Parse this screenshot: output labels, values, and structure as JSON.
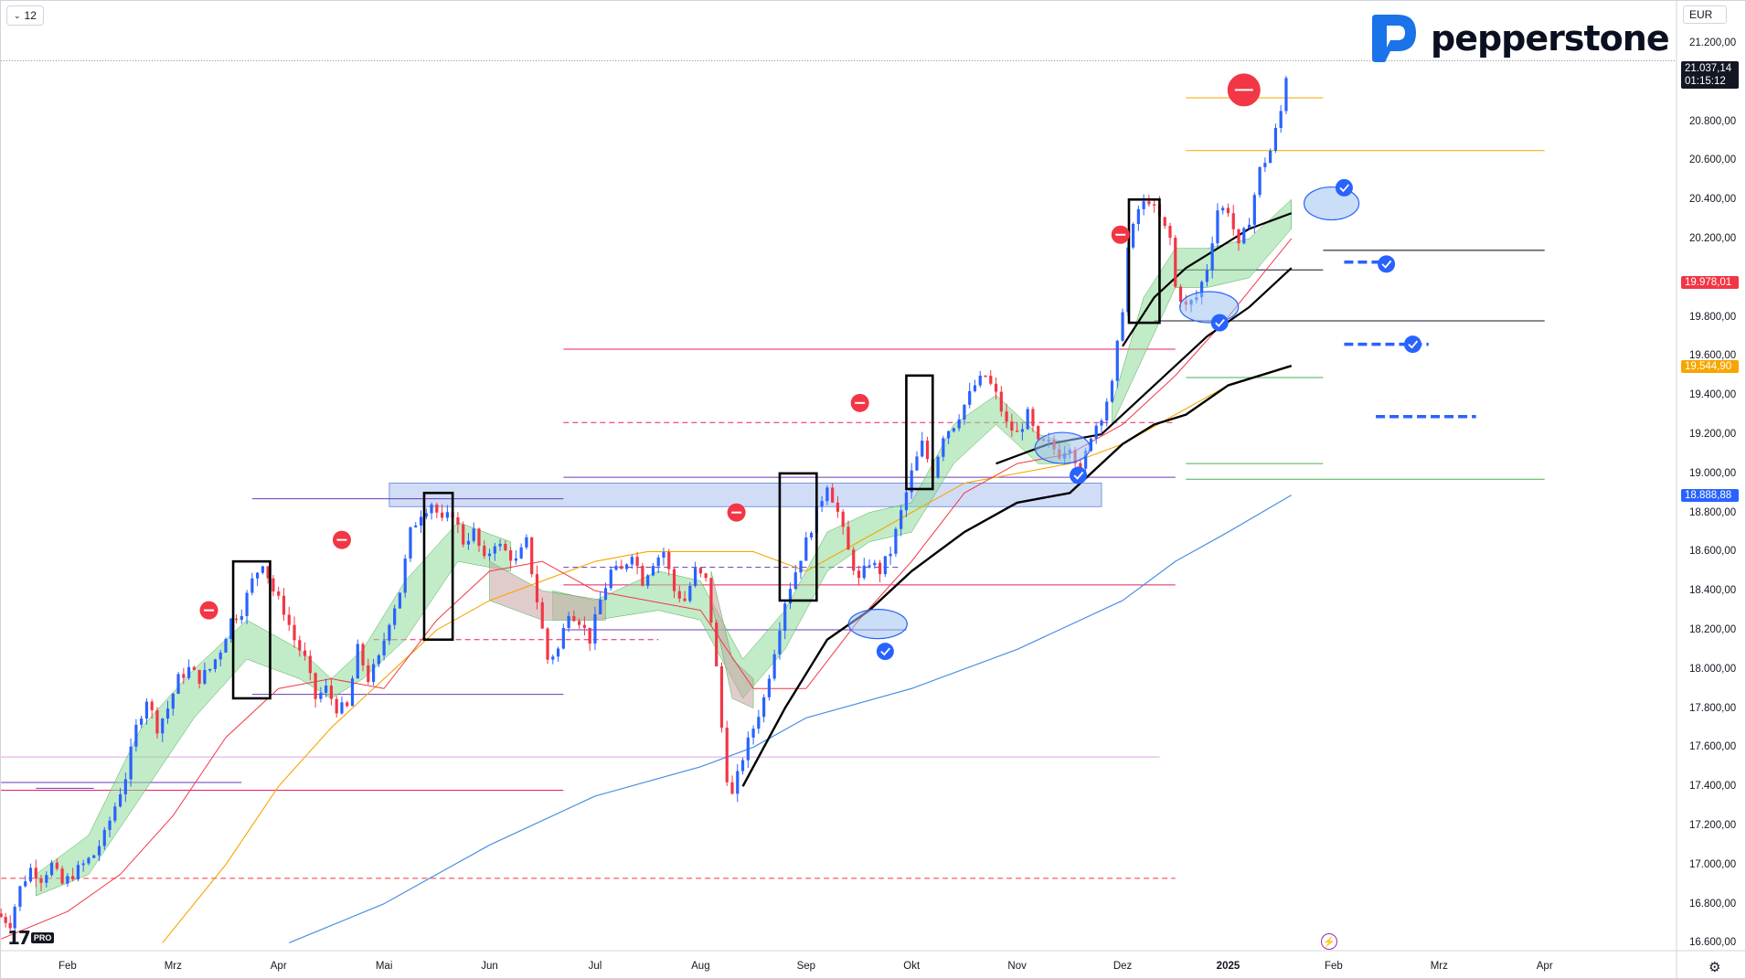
{
  "toolbar": {
    "interval_label": "12",
    "interval_icon": "chevron-down-icon"
  },
  "brand": {
    "name": "pepperstone",
    "logo_icon": "pepperstone-p-logo"
  },
  "currency": "EUR",
  "watermark": {
    "label": "PRO",
    "logo_icon": "tradingview-logo"
  },
  "icons": {
    "settings": "gear-icon",
    "alert": "lightning-bolt-icon"
  },
  "colors": {
    "up": "#2962ff",
    "down": "#f23645",
    "ma_fast": "#f23645",
    "ma_mid": "#000000",
    "ma_slow_orange": "#f7a600",
    "ma_long_blue": "#4a90e2",
    "band_up": "#8fdb9a",
    "band_down": "#c9a3a3",
    "resistance": "#e91e63",
    "support": "#673ab7",
    "zone": "#7b9ee8",
    "check": "#2962ff",
    "sell_marker": "#f23645"
  },
  "price_tags": {
    "current": {
      "price": "21.037,14",
      "countdown": "01:15:12",
      "value": 21037.14,
      "color": "#131722"
    },
    "levels": [
      {
        "label": "19.978,01",
        "value": 19978.01,
        "color": "#f23645"
      },
      {
        "label": "19.544,90",
        "value": 19544.9,
        "color": "#f7a600"
      },
      {
        "label": "18.888,88",
        "value": 18888.88,
        "color": "#2962ff"
      }
    ]
  },
  "chart_data": {
    "type": "candlestick",
    "instrument_currency": "EUR",
    "y_axis": {
      "labels": [
        "21.200,00",
        "20.800,00",
        "20.600,00",
        "20.400,00",
        "20.200,00",
        "19.800,00",
        "19.600,00",
        "19.400,00",
        "19.200,00",
        "19.000,00",
        "18.800,00",
        "18.600,00",
        "18.400,00",
        "18.200,00",
        "18.000,00",
        "17.800,00",
        "17.600,00",
        "17.400,00",
        "17.200,00",
        "17.000,00",
        "16.800,00",
        "16.600,00"
      ],
      "values": [
        21200,
        20800,
        20600,
        20400,
        20200,
        19800,
        19600,
        19400,
        19200,
        19000,
        18800,
        18600,
        18400,
        18200,
        18000,
        17800,
        17600,
        17400,
        17200,
        17000,
        16800,
        16600
      ],
      "range": [
        16560,
        21420
      ]
    },
    "x_axis": {
      "labels": [
        "Feb",
        "Mrz",
        "Apr",
        "Mai",
        "Jun",
        "Jul",
        "Aug",
        "Sep",
        "Okt",
        "Nov",
        "Dez",
        "2025",
        "Feb",
        "Mrz",
        "Apr"
      ],
      "bold": [
        "2025"
      ],
      "label_months": [
        1,
        2,
        3,
        4,
        5,
        6,
        7,
        8,
        9,
        10,
        11,
        12,
        13,
        14,
        15
      ],
      "range_months": [
        0.36,
        16.25
      ]
    },
    "candles_anchor_close": [
      [
        0.37,
        16750
      ],
      [
        0.5,
        16700
      ],
      [
        0.6,
        16880
      ],
      [
        0.7,
        16980
      ],
      [
        0.8,
        16930
      ],
      [
        0.9,
        17000
      ],
      [
        1.0,
        16900
      ],
      [
        1.1,
        16950
      ],
      [
        1.2,
        17000
      ],
      [
        1.3,
        17050
      ],
      [
        1.4,
        17150
      ],
      [
        1.5,
        17300
      ],
      [
        1.6,
        17450
      ],
      [
        1.7,
        17700
      ],
      [
        1.8,
        17850
      ],
      [
        1.9,
        17700
      ],
      [
        2.0,
        17800
      ],
      [
        2.1,
        17950
      ],
      [
        2.2,
        18000
      ],
      [
        2.3,
        17950
      ],
      [
        2.4,
        18000
      ],
      [
        2.5,
        18100
      ],
      [
        2.6,
        18250
      ],
      [
        2.7,
        18300
      ],
      [
        2.8,
        18450
      ],
      [
        2.9,
        18550
      ],
      [
        3.0,
        18400
      ],
      [
        3.1,
        18300
      ],
      [
        3.2,
        18150
      ],
      [
        3.3,
        18050
      ],
      [
        3.4,
        17850
      ],
      [
        3.5,
        17900
      ],
      [
        3.6,
        17800
      ],
      [
        3.7,
        17800
      ],
      [
        3.8,
        18100
      ],
      [
        3.9,
        17950
      ],
      [
        4.0,
        18050
      ],
      [
        4.1,
        18250
      ],
      [
        4.2,
        18400
      ],
      [
        4.3,
        18700
      ],
      [
        4.4,
        18800
      ],
      [
        4.5,
        18850
      ],
      [
        4.6,
        18750
      ],
      [
        4.7,
        18800
      ],
      [
        4.8,
        18650
      ],
      [
        4.9,
        18700
      ],
      [
        5.0,
        18550
      ],
      [
        5.1,
        18650
      ],
      [
        5.2,
        18600
      ],
      [
        5.3,
        18550
      ],
      [
        5.4,
        18650
      ],
      [
        5.5,
        18350
      ],
      [
        5.6,
        18050
      ],
      [
        5.7,
        18100
      ],
      [
        5.8,
        18300
      ],
      [
        5.9,
        18250
      ],
      [
        6.0,
        18150
      ],
      [
        6.1,
        18350
      ],
      [
        6.2,
        18500
      ],
      [
        6.3,
        18500
      ],
      [
        6.4,
        18600
      ],
      [
        6.5,
        18450
      ],
      [
        6.6,
        18550
      ],
      [
        6.7,
        18600
      ],
      [
        6.8,
        18400
      ],
      [
        6.9,
        18350
      ],
      [
        7.0,
        18500
      ],
      [
        7.1,
        18450
      ],
      [
        7.15,
        18250
      ],
      [
        7.2,
        18000
      ],
      [
        7.25,
        17700
      ],
      [
        7.3,
        17450
      ],
      [
        7.35,
        17350
      ],
      [
        7.45,
        17550
      ],
      [
        7.55,
        17700
      ],
      [
        7.65,
        17850
      ],
      [
        7.75,
        18100
      ],
      [
        7.85,
        18350
      ],
      [
        7.95,
        18500
      ],
      [
        8.05,
        18650
      ],
      [
        8.15,
        18800
      ],
      [
        8.25,
        18950
      ],
      [
        8.35,
        18800
      ],
      [
        8.45,
        18600
      ],
      [
        8.55,
        18450
      ],
      [
        8.65,
        18550
      ],
      [
        8.75,
        18500
      ],
      [
        8.85,
        18600
      ],
      [
        8.95,
        18800
      ],
      [
        9.05,
        19000
      ],
      [
        9.15,
        19150
      ],
      [
        9.25,
        19000
      ],
      [
        9.35,
        19200
      ],
      [
        9.45,
        19250
      ],
      [
        9.55,
        19350
      ],
      [
        9.65,
        19450
      ],
      [
        9.75,
        19500
      ],
      [
        9.85,
        19400
      ],
      [
        9.95,
        19250
      ],
      [
        10.05,
        19200
      ],
      [
        10.15,
        19300
      ],
      [
        10.25,
        19150
      ],
      [
        10.35,
        19150
      ],
      [
        10.45,
        19100
      ],
      [
        10.55,
        19150
      ],
      [
        10.65,
        19000
      ],
      [
        10.75,
        19200
      ],
      [
        10.85,
        19300
      ],
      [
        10.95,
        19450
      ],
      [
        11.0,
        19650
      ],
      [
        11.05,
        19850
      ],
      [
        11.1,
        20150
      ],
      [
        11.2,
        20350
      ],
      [
        11.3,
        20400
      ],
      [
        11.4,
        20300
      ],
      [
        11.5,
        20200
      ],
      [
        11.55,
        19950
      ],
      [
        11.65,
        19850
      ],
      [
        11.75,
        19900
      ],
      [
        11.85,
        20050
      ],
      [
        11.95,
        20350
      ],
      [
        12.05,
        20350
      ],
      [
        12.15,
        20150
      ],
      [
        12.25,
        20300
      ],
      [
        12.35,
        20550
      ],
      [
        12.45,
        20650
      ],
      [
        12.55,
        20850
      ],
      [
        12.6,
        21037
      ]
    ],
    "moving_averages_anchor": {
      "ma_fast_red": [
        [
          0.37,
          16620
        ],
        [
          1.0,
          16760
        ],
        [
          1.5,
          16950
        ],
        [
          2.0,
          17250
        ],
        [
          2.5,
          17650
        ],
        [
          3.0,
          17900
        ],
        [
          3.5,
          17950
        ],
        [
          4.0,
          17900
        ],
        [
          4.5,
          18250
        ],
        [
          5.0,
          18500
        ],
        [
          5.5,
          18550
        ],
        [
          6.0,
          18400
        ],
        [
          6.5,
          18350
        ],
        [
          7.0,
          18300
        ],
        [
          7.5,
          17900
        ],
        [
          8.0,
          17900
        ],
        [
          8.5,
          18250
        ],
        [
          9.0,
          18550
        ],
        [
          9.5,
          18900
        ],
        [
          10.0,
          19050
        ],
        [
          10.5,
          19100
        ],
        [
          11.0,
          19250
        ],
        [
          11.5,
          19500
        ],
        [
          12.0,
          19800
        ],
        [
          12.6,
          20200
        ]
      ],
      "ma_mid_black": [
        [
          7.4,
          17400
        ],
        [
          7.8,
          17800
        ],
        [
          8.2,
          18150
        ],
        [
          8.6,
          18300
        ],
        [
          9.0,
          18500
        ],
        [
          9.5,
          18700
        ],
        [
          10.0,
          18850
        ],
        [
          10.5,
          18900
        ],
        [
          11.0,
          19150
        ],
        [
          11.3,
          19250
        ],
        [
          11.6,
          19300
        ],
        [
          12.0,
          19450
        ],
        [
          12.6,
          19550
        ]
      ],
      "ma_mid_black_2": [
        [
          9.8,
          19050
        ],
        [
          10.3,
          19150
        ],
        [
          10.8,
          19200
        ],
        [
          11.3,
          19450
        ],
        [
          11.8,
          19700
        ],
        [
          12.2,
          19850
        ],
        [
          12.6,
          20050
        ]
      ],
      "ma_slow_orange": [
        [
          1.9,
          16600
        ],
        [
          2.5,
          17000
        ],
        [
          3.0,
          17400
        ],
        [
          3.5,
          17700
        ],
        [
          4.0,
          17950
        ],
        [
          4.5,
          18200
        ],
        [
          5.0,
          18350
        ],
        [
          5.5,
          18450
        ],
        [
          6.0,
          18550
        ],
        [
          6.5,
          18600
        ],
        [
          7.0,
          18600
        ],
        [
          7.5,
          18600
        ],
        [
          8.0,
          18500
        ],
        [
          8.5,
          18650
        ],
        [
          9.0,
          18800
        ],
        [
          9.5,
          18950
        ],
        [
          10.0,
          19000
        ],
        [
          10.5,
          19050
        ],
        [
          11.0,
          19150
        ],
        [
          11.5,
          19300
        ],
        [
          12.0,
          19450
        ],
        [
          12.6,
          19545
        ]
      ],
      "ma_long_blue": [
        [
          3.1,
          16600
        ],
        [
          4.0,
          16800
        ],
        [
          5.0,
          17100
        ],
        [
          6.0,
          17350
        ],
        [
          7.0,
          17500
        ],
        [
          7.5,
          17600
        ],
        [
          8.0,
          17750
        ],
        [
          9.0,
          17900
        ],
        [
          10.0,
          18100
        ],
        [
          11.0,
          18350
        ],
        [
          11.5,
          18550
        ],
        [
          12.0,
          18700
        ],
        [
          12.6,
          18889
        ]
      ]
    },
    "lines": {
      "current_price": 21037.14
    }
  }
}
